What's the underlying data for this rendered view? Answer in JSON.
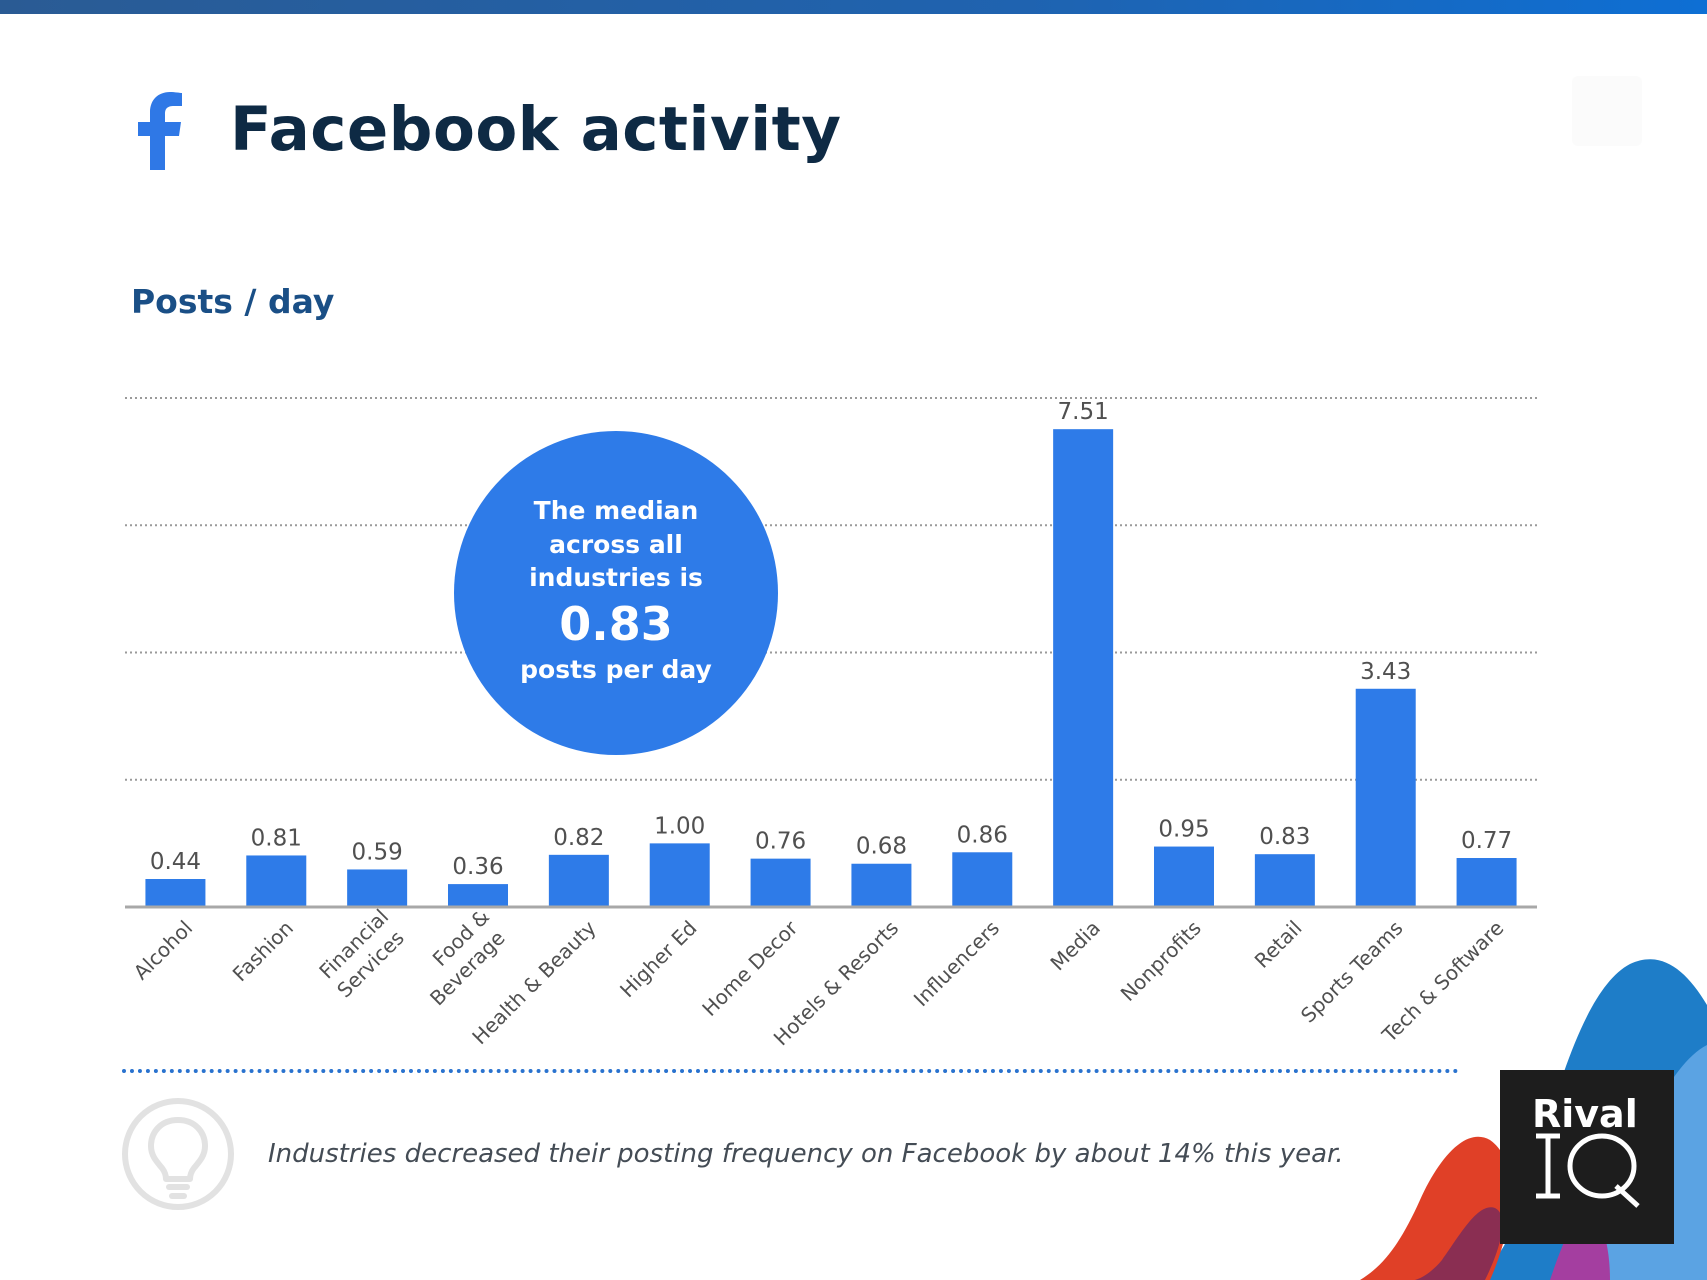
{
  "header": {
    "title": "Facebook activity",
    "subtitle": "Posts / day"
  },
  "callout": {
    "line1": "The median",
    "line2": "across all",
    "line3": "industries is",
    "value": "0.83",
    "line4": "posts per day"
  },
  "footer": {
    "insight": "Industries decreased their posting frequency on Facebook by about 14% this year.",
    "brand_word": "Rival",
    "brand_mark": "IQ"
  },
  "icons": {
    "brand": "facebook-icon",
    "insight": "lightbulb-icon"
  },
  "colors": {
    "bar": "#2e7be8",
    "title": "#0e2a44",
    "subtitle": "#1a4f86",
    "value_label": "#505050",
    "category_label": "#505050"
  },
  "chart_data": {
    "type": "bar",
    "title": "Posts / day",
    "xlabel": "",
    "ylabel": "",
    "ylim": [
      0,
      8
    ],
    "grid": true,
    "categories": [
      "Alcohol",
      "Fashion",
      "Financial Services",
      "Food & Beverage",
      "Health & Beauty",
      "Higher Ed",
      "Home Decor",
      "Hotels & Resorts",
      "Influencers",
      "Media",
      "Nonprofits",
      "Retail",
      "Sports Teams",
      "Tech & Software"
    ],
    "values": [
      0.44,
      0.81,
      0.59,
      0.36,
      0.82,
      1.0,
      0.76,
      0.68,
      0.86,
      7.51,
      0.95,
      0.83,
      3.43,
      0.77
    ],
    "labels": [
      "0.44",
      "0.81",
      "0.59",
      "0.36",
      "0.82",
      "1.00",
      "0.76",
      "0.68",
      "0.86",
      "7.51",
      "0.95",
      "0.83",
      "3.43",
      "0.77"
    ],
    "annotation": "The median across all industries is 0.83 posts per day"
  }
}
